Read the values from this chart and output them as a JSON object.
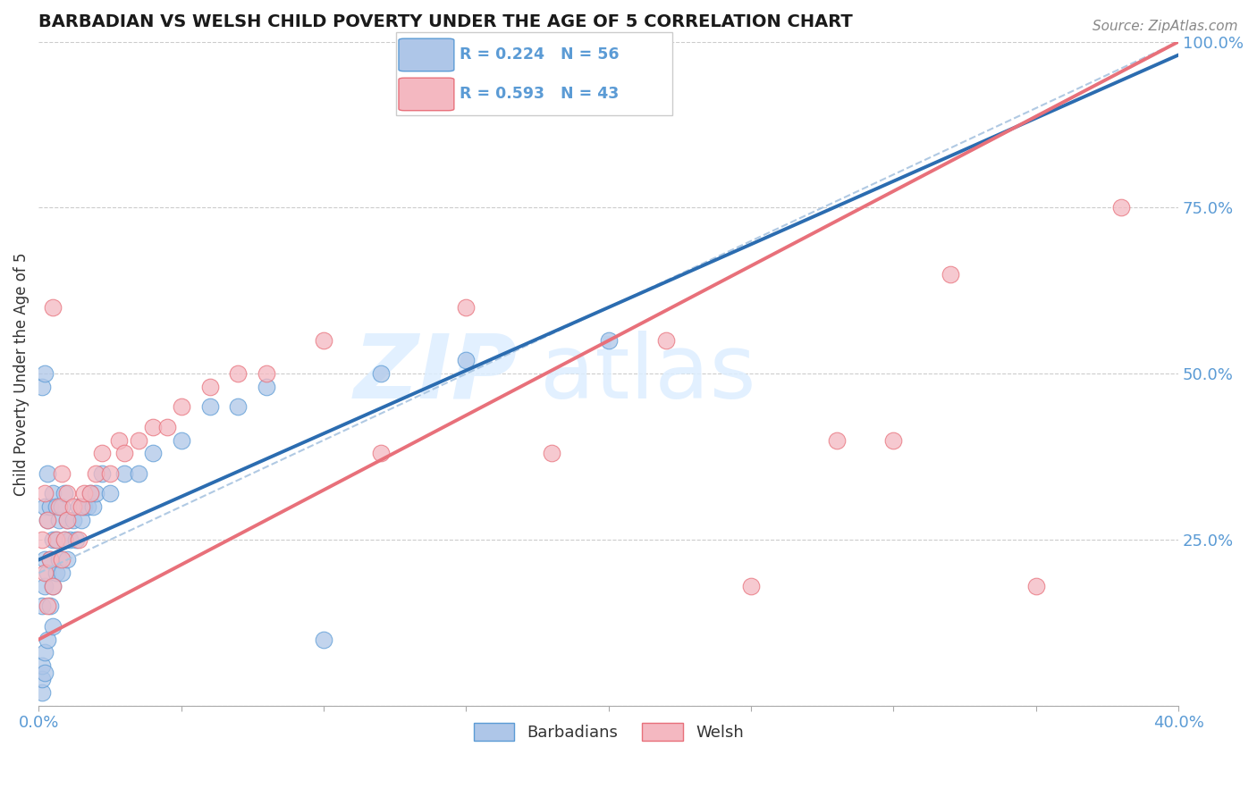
{
  "title": "BARBADIAN VS WELSH CHILD POVERTY UNDER THE AGE OF 5 CORRELATION CHART",
  "source": "Source: ZipAtlas.com",
  "ylabel": "Child Poverty Under the Age of 5",
  "xlim": [
    0.0,
    0.4
  ],
  "ylim": [
    0.0,
    1.0
  ],
  "barbadian_color": "#aec6e8",
  "barbadian_edge": "#5b9bd5",
  "barbadian_line_color": "#2b6cb0",
  "welsh_color": "#f4b8c1",
  "welsh_edge": "#e8707a",
  "welsh_line_color": "#e8707a",
  "ci_line_color": "#a8c4e0",
  "barbadian_R": 0.224,
  "barbadian_N": 56,
  "welsh_R": 0.593,
  "welsh_N": 43,
  "watermark_color": "#ddeeff",
  "grid_color": "#cccccc",
  "tick_color": "#5b9bd5",
  "title_color": "#1a1a1a",
  "source_color": "#888888",
  "ylabel_color": "#333333",
  "barb_x": [
    0.001,
    0.001,
    0.001,
    0.001,
    0.001,
    0.002,
    0.002,
    0.002,
    0.002,
    0.002,
    0.002,
    0.003,
    0.003,
    0.003,
    0.003,
    0.004,
    0.004,
    0.004,
    0.005,
    0.005,
    0.005,
    0.005,
    0.006,
    0.006,
    0.006,
    0.007,
    0.007,
    0.008,
    0.008,
    0.009,
    0.009,
    0.01,
    0.01,
    0.011,
    0.012,
    0.013,
    0.014,
    0.015,
    0.016,
    0.017,
    0.018,
    0.019,
    0.02,
    0.022,
    0.025,
    0.03,
    0.035,
    0.04,
    0.05,
    0.06,
    0.07,
    0.08,
    0.1,
    0.12,
    0.15,
    0.2
  ],
  "barb_y": [
    0.02,
    0.04,
    0.06,
    0.15,
    0.48,
    0.05,
    0.08,
    0.18,
    0.22,
    0.3,
    0.5,
    0.1,
    0.2,
    0.28,
    0.35,
    0.15,
    0.22,
    0.3,
    0.12,
    0.18,
    0.25,
    0.32,
    0.2,
    0.25,
    0.3,
    0.22,
    0.28,
    0.2,
    0.3,
    0.25,
    0.32,
    0.22,
    0.28,
    0.25,
    0.28,
    0.25,
    0.3,
    0.28,
    0.3,
    0.3,
    0.32,
    0.3,
    0.32,
    0.35,
    0.32,
    0.35,
    0.35,
    0.38,
    0.4,
    0.45,
    0.45,
    0.48,
    0.1,
    0.5,
    0.52,
    0.55
  ],
  "welsh_x": [
    0.001,
    0.002,
    0.002,
    0.003,
    0.003,
    0.004,
    0.005,
    0.005,
    0.006,
    0.007,
    0.008,
    0.008,
    0.009,
    0.01,
    0.01,
    0.012,
    0.014,
    0.015,
    0.016,
    0.018,
    0.02,
    0.022,
    0.025,
    0.028,
    0.03,
    0.035,
    0.04,
    0.045,
    0.05,
    0.06,
    0.07,
    0.08,
    0.1,
    0.12,
    0.15,
    0.18,
    0.22,
    0.25,
    0.28,
    0.3,
    0.32,
    0.35,
    0.38
  ],
  "welsh_y": [
    0.25,
    0.2,
    0.32,
    0.15,
    0.28,
    0.22,
    0.6,
    0.18,
    0.25,
    0.3,
    0.22,
    0.35,
    0.25,
    0.28,
    0.32,
    0.3,
    0.25,
    0.3,
    0.32,
    0.32,
    0.35,
    0.38,
    0.35,
    0.4,
    0.38,
    0.4,
    0.42,
    0.42,
    0.45,
    0.48,
    0.5,
    0.5,
    0.55,
    0.38,
    0.6,
    0.38,
    0.55,
    0.18,
    0.4,
    0.4,
    0.65,
    0.18,
    0.75
  ],
  "barb_trend": [
    0.22,
    1.0
  ],
  "welsh_trend": [
    0.1,
    1.0
  ],
  "ci_trend": [
    0.2,
    1.0
  ]
}
